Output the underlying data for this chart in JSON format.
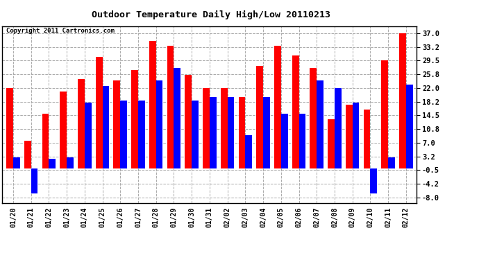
{
  "title": "Outdoor Temperature Daily High/Low 20110213",
  "copyright": "Copyright 2011 Cartronics.com",
  "dates": [
    "01/20",
    "01/21",
    "01/22",
    "01/23",
    "01/24",
    "01/25",
    "01/26",
    "01/27",
    "01/28",
    "01/29",
    "01/30",
    "01/31",
    "02/02",
    "02/03",
    "02/04",
    "02/05",
    "02/06",
    "02/07",
    "02/08",
    "02/09",
    "02/10",
    "02/11",
    "02/12"
  ],
  "highs": [
    22.0,
    7.5,
    15.0,
    21.0,
    24.5,
    30.5,
    24.0,
    27.0,
    35.0,
    33.5,
    25.5,
    22.0,
    22.0,
    19.5,
    28.0,
    33.5,
    31.0,
    27.5,
    13.5,
    17.5,
    16.0,
    29.5,
    37.0
  ],
  "lows": [
    3.0,
    -7.0,
    2.5,
    3.0,
    18.0,
    22.5,
    18.5,
    18.5,
    24.0,
    27.5,
    18.5,
    19.5,
    19.5,
    9.0,
    19.5,
    15.0,
    15.0,
    24.0,
    22.0,
    18.0,
    -7.0,
    3.0,
    23.0
  ],
  "high_color": "#ff0000",
  "low_color": "#0000ff",
  "background_color": "#ffffff",
  "grid_color": "#aaaaaa",
  "yticks": [
    -8.0,
    -4.2,
    -0.5,
    3.2,
    7.0,
    10.8,
    14.5,
    18.2,
    22.0,
    25.8,
    29.5,
    33.2,
    37.0
  ],
  "ylim": [
    -9.5,
    39.0
  ],
  "bar_width": 0.38
}
